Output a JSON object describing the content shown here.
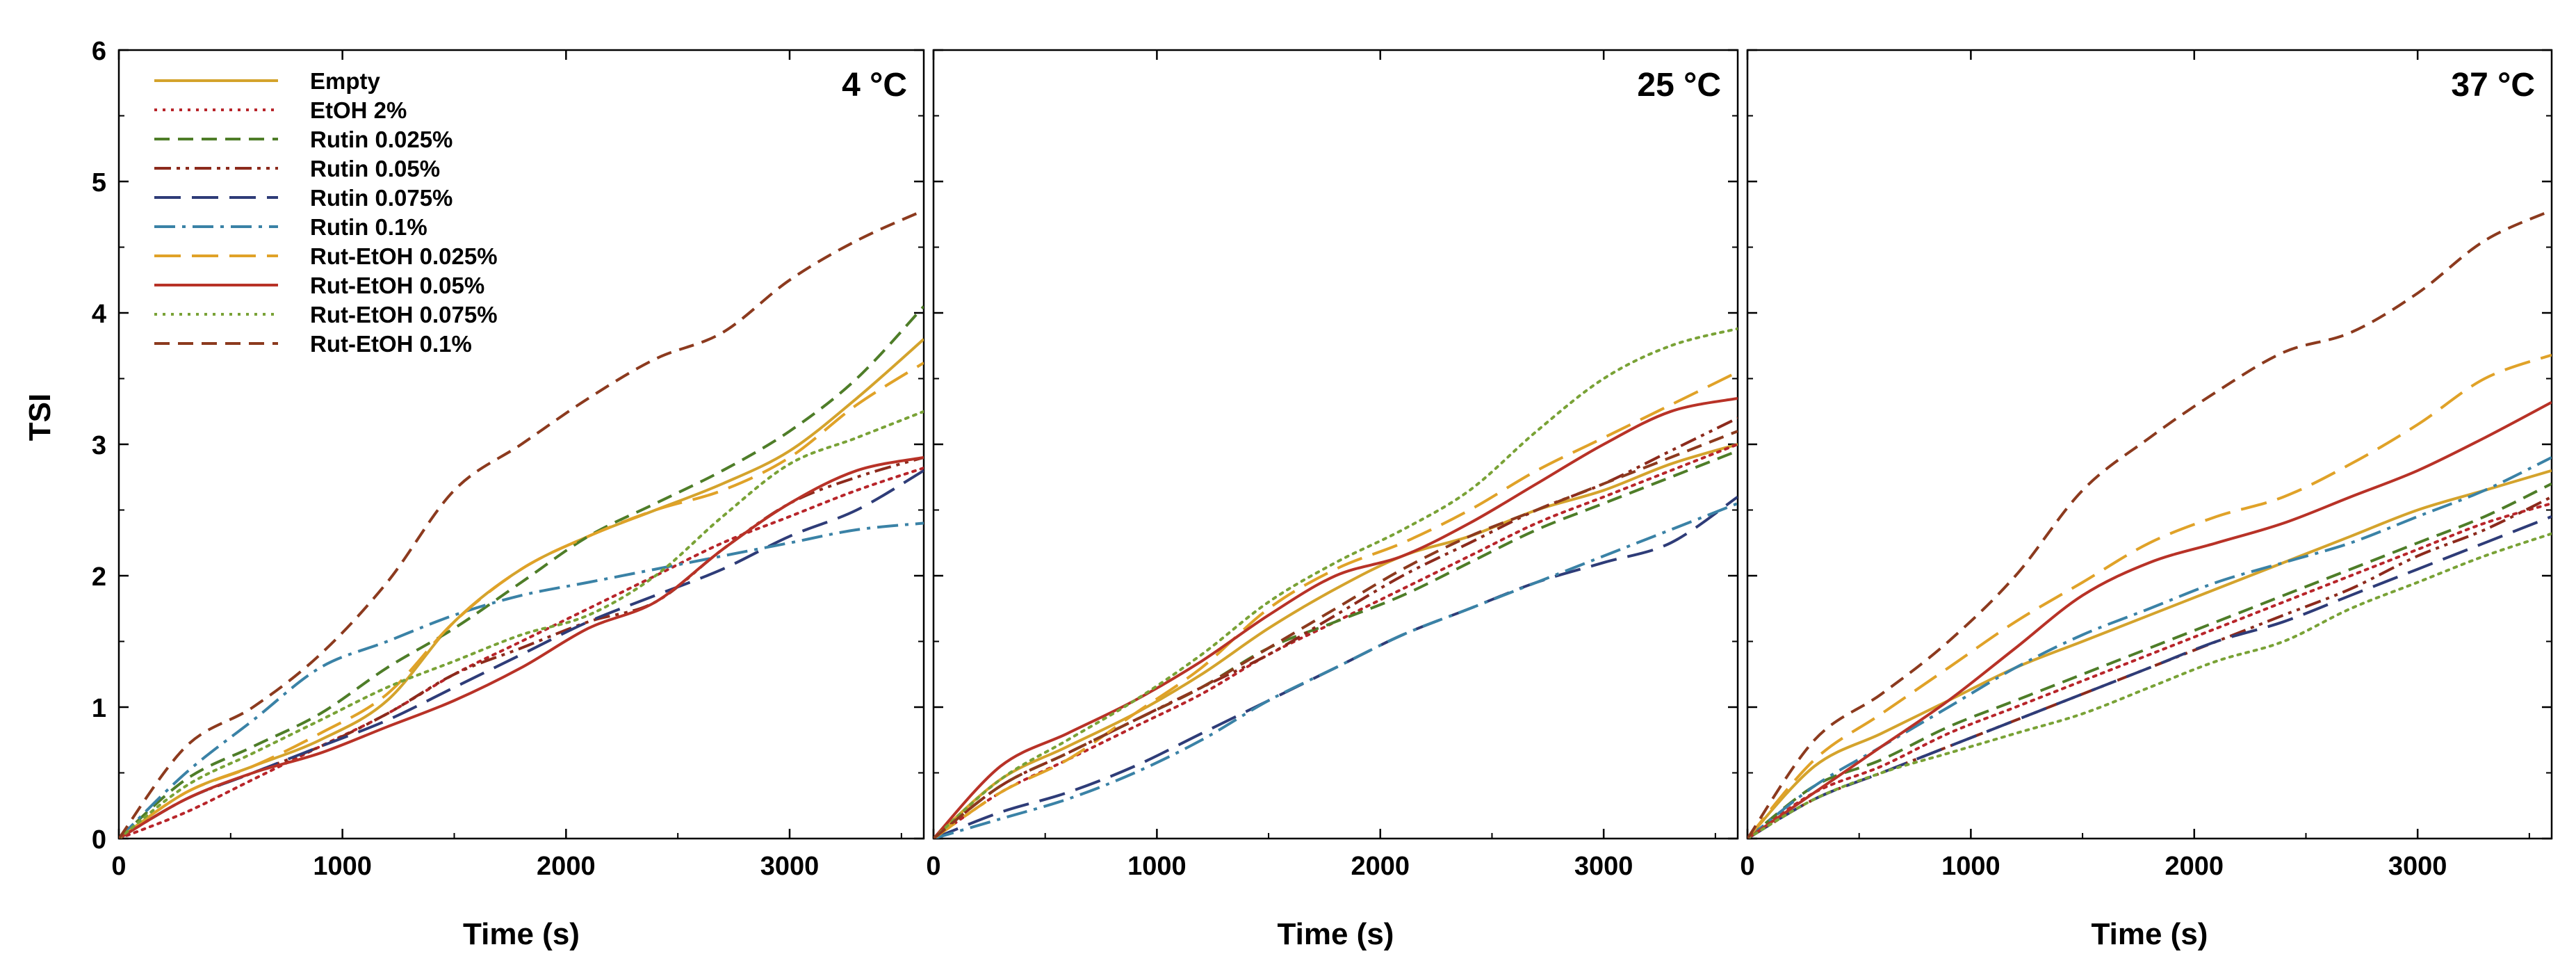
{
  "figure": {
    "ylabel": "TSI",
    "xlabel": "Time (s)",
    "xlim": [
      0,
      3600
    ],
    "ylim": [
      0,
      6
    ],
    "xticks": [
      0,
      1000,
      2000,
      3000
    ],
    "yticks": [
      0,
      1,
      2,
      3,
      4,
      5,
      6
    ]
  },
  "legend": [
    {
      "name": "Empty",
      "color": "#D4A32C",
      "dash": "solid"
    },
    {
      "name": "EtOH 2%",
      "color": "#B8252A",
      "dash": "dot"
    },
    {
      "name": "Rutin 0.025%",
      "color": "#4E7D28",
      "dash": "dash"
    },
    {
      "name": "Rutin 0.05%",
      "color": "#8C2A1C",
      "dash": "dashdotdot"
    },
    {
      "name": "Rutin 0.075%",
      "color": "#2E3C78",
      "dash": "longdash"
    },
    {
      "name": "Rutin 0.1%",
      "color": "#3A82A6",
      "dash": "dashdot"
    },
    {
      "name": "Rut-EtOH 0.025%",
      "color": "#E0A228",
      "dash": "longdash"
    },
    {
      "name": "Rut-EtOH 0.05%",
      "color": "#B83227",
      "dash": "solid"
    },
    {
      "name": "Rut-EtOH 0.075%",
      "color": "#79A236",
      "dash": "dot"
    },
    {
      "name": "Rut-EtOH 0.1%",
      "color": "#8C3A1E",
      "dash": "dash"
    }
  ],
  "chart_data": [
    {
      "type": "line",
      "title": "4 °C",
      "xlabel": "Time (s)",
      "ylabel": "TSI",
      "xlim": [
        0,
        3600
      ],
      "ylim": [
        0,
        6
      ],
      "x": [
        0,
        300,
        600,
        900,
        1200,
        1500,
        1800,
        2100,
        2400,
        2700,
        3000,
        3300,
        3600
      ],
      "series": [
        {
          "name": "Empty",
          "values": [
            0,
            0.35,
            0.55,
            0.75,
            1.05,
            1.65,
            2.05,
            2.3,
            2.5,
            2.7,
            2.95,
            3.35,
            3.8
          ]
        },
        {
          "name": "EtOH 2%",
          "values": [
            0,
            0.2,
            0.45,
            0.7,
            0.95,
            1.25,
            1.5,
            1.75,
            2.0,
            2.25,
            2.45,
            2.65,
            2.82
          ]
        },
        {
          "name": "Rutin 0.025%",
          "values": [
            0,
            0.45,
            0.7,
            0.95,
            1.3,
            1.6,
            1.95,
            2.3,
            2.55,
            2.8,
            3.1,
            3.5,
            4.05
          ]
        },
        {
          "name": "Rutin 0.05%",
          "values": [
            0,
            0.3,
            0.5,
            0.7,
            0.95,
            1.25,
            1.45,
            1.65,
            1.8,
            2.2,
            2.55,
            2.75,
            2.9
          ]
        },
        {
          "name": "Rutin 0.075%",
          "values": [
            0,
            0.3,
            0.5,
            0.7,
            0.9,
            1.15,
            1.4,
            1.65,
            1.85,
            2.05,
            2.3,
            2.5,
            2.8
          ]
        },
        {
          "name": "Rutin 0.1%",
          "values": [
            0,
            0.5,
            0.9,
            1.3,
            1.5,
            1.7,
            1.85,
            1.95,
            2.05,
            2.15,
            2.25,
            2.35,
            2.4
          ]
        },
        {
          "name": "Rut-EtOH 0.025%",
          "values": [
            0,
            0.35,
            0.55,
            0.8,
            1.1,
            1.65,
            2.05,
            2.3,
            2.5,
            2.65,
            2.9,
            3.3,
            3.62
          ]
        },
        {
          "name": "Rut-EtOH 0.05%",
          "values": [
            0,
            0.3,
            0.5,
            0.65,
            0.85,
            1.05,
            1.3,
            1.6,
            1.8,
            2.2,
            2.55,
            2.8,
            2.9
          ]
        },
        {
          "name": "Rut-EtOH 0.075%",
          "values": [
            0,
            0.4,
            0.65,
            0.9,
            1.15,
            1.35,
            1.55,
            1.7,
            2.0,
            2.45,
            2.85,
            3.05,
            3.25
          ]
        },
        {
          "name": "Rut-EtOH 0.1%",
          "values": [
            0,
            0.7,
            1.0,
            1.4,
            1.95,
            2.65,
            3.0,
            3.35,
            3.65,
            3.85,
            4.25,
            4.55,
            4.78
          ]
        }
      ]
    },
    {
      "type": "line",
      "title": "25 °C",
      "xlabel": "Time (s)",
      "ylabel": "TSI",
      "xlim": [
        0,
        3600
      ],
      "ylim": [
        0,
        6
      ],
      "x": [
        0,
        300,
        600,
        900,
        1200,
        1500,
        1800,
        2100,
        2400,
        2700,
        3000,
        3300,
        3600
      ],
      "series": [
        {
          "name": "Empty",
          "values": [
            0,
            0.45,
            0.7,
            0.95,
            1.25,
            1.6,
            1.9,
            2.15,
            2.3,
            2.5,
            2.65,
            2.85,
            3.0
          ]
        },
        {
          "name": "EtOH 2%",
          "values": [
            0,
            0.35,
            0.6,
            0.85,
            1.1,
            1.4,
            1.65,
            1.9,
            2.15,
            2.4,
            2.6,
            2.8,
            3.0
          ]
        },
        {
          "name": "Rutin 0.025%",
          "values": [
            0,
            0.4,
            0.65,
            0.9,
            1.15,
            1.45,
            1.65,
            1.85,
            2.1,
            2.35,
            2.55,
            2.75,
            2.95
          ]
        },
        {
          "name": "Rutin 0.05%",
          "values": [
            0,
            0.4,
            0.65,
            0.9,
            1.15,
            1.4,
            1.7,
            2.0,
            2.25,
            2.5,
            2.7,
            2.95,
            3.2
          ]
        },
        {
          "name": "Rutin 0.075%",
          "values": [
            0,
            0.2,
            0.35,
            0.55,
            0.8,
            1.05,
            1.3,
            1.55,
            1.75,
            1.95,
            2.1,
            2.25,
            2.6
          ]
        },
        {
          "name": "Rutin 0.1%",
          "values": [
            0,
            0.15,
            0.3,
            0.5,
            0.75,
            1.05,
            1.3,
            1.55,
            1.75,
            1.95,
            2.15,
            2.35,
            2.55
          ]
        },
        {
          "name": "Rut-EtOH 0.025%",
          "values": [
            0,
            0.35,
            0.6,
            0.95,
            1.3,
            1.75,
            2.05,
            2.25,
            2.5,
            2.8,
            3.05,
            3.3,
            3.55
          ]
        },
        {
          "name": "Rut-EtOH 0.05%",
          "values": [
            0,
            0.55,
            0.8,
            1.05,
            1.35,
            1.7,
            2.0,
            2.15,
            2.4,
            2.7,
            3.0,
            3.25,
            3.35
          ]
        },
        {
          "name": "Rut-EtOH 0.075%",
          "values": [
            0,
            0.45,
            0.75,
            1.05,
            1.4,
            1.8,
            2.1,
            2.35,
            2.65,
            3.1,
            3.5,
            3.75,
            3.88
          ]
        },
        {
          "name": "Rut-EtOH 0.1%",
          "values": [
            0,
            0.4,
            0.65,
            0.9,
            1.15,
            1.45,
            1.75,
            2.05,
            2.3,
            2.5,
            2.7,
            2.9,
            3.1
          ]
        }
      ]
    },
    {
      "type": "line",
      "title": "37 °C",
      "xlabel": "Time (s)",
      "ylabel": "TSI",
      "xlim": [
        0,
        3600
      ],
      "ylim": [
        0,
        6
      ],
      "x": [
        0,
        300,
        600,
        900,
        1200,
        1500,
        1800,
        2100,
        2400,
        2700,
        3000,
        3300,
        3600
      ],
      "series": [
        {
          "name": "Empty",
          "values": [
            0,
            0.55,
            0.8,
            1.05,
            1.3,
            1.5,
            1.7,
            1.9,
            2.1,
            2.3,
            2.5,
            2.65,
            2.8
          ]
        },
        {
          "name": "EtOH 2%",
          "values": [
            0,
            0.35,
            0.55,
            0.8,
            1.0,
            1.2,
            1.4,
            1.6,
            1.8,
            2.0,
            2.2,
            2.4,
            2.55
          ]
        },
        {
          "name": "Rutin 0.025%",
          "values": [
            0,
            0.4,
            0.6,
            0.85,
            1.05,
            1.25,
            1.45,
            1.65,
            1.85,
            2.05,
            2.25,
            2.45,
            2.7
          ]
        },
        {
          "name": "Rutin 0.05%",
          "values": [
            0,
            0.3,
            0.5,
            0.7,
            0.9,
            1.1,
            1.3,
            1.5,
            1.7,
            1.9,
            2.15,
            2.35,
            2.6
          ]
        },
        {
          "name": "Rutin 0.075%",
          "values": [
            0,
            0.3,
            0.5,
            0.7,
            0.9,
            1.1,
            1.3,
            1.5,
            1.65,
            1.85,
            2.05,
            2.25,
            2.45
          ]
        },
        {
          "name": "Rutin 0.1%",
          "values": [
            0,
            0.4,
            0.7,
            1.0,
            1.3,
            1.55,
            1.75,
            1.95,
            2.1,
            2.25,
            2.45,
            2.65,
            2.9
          ]
        },
        {
          "name": "Rut-EtOH 0.025%",
          "values": [
            0,
            0.6,
            0.95,
            1.3,
            1.65,
            1.95,
            2.25,
            2.45,
            2.6,
            2.85,
            3.15,
            3.5,
            3.68
          ]
        },
        {
          "name": "Rut-EtOH 0.05%",
          "values": [
            0,
            0.35,
            0.7,
            1.05,
            1.45,
            1.85,
            2.1,
            2.25,
            2.4,
            2.6,
            2.8,
            3.05,
            3.32
          ]
        },
        {
          "name": "Rut-EtOH 0.075%",
          "values": [
            0,
            0.3,
            0.5,
            0.65,
            0.8,
            0.95,
            1.15,
            1.35,
            1.5,
            1.75,
            1.95,
            2.15,
            2.32
          ]
        },
        {
          "name": "Rut-EtOH 0.1%",
          "values": [
            0,
            0.75,
            1.1,
            1.5,
            2.0,
            2.65,
            3.05,
            3.4,
            3.7,
            3.85,
            4.15,
            4.55,
            4.78
          ]
        }
      ]
    }
  ]
}
